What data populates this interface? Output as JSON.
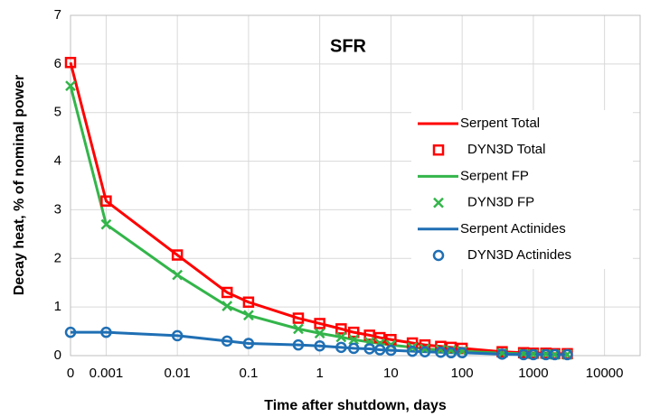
{
  "chart_data": {
    "type": "line",
    "annotation": "SFR",
    "xlabel": "Time after shutdown, days",
    "ylabel": "Decay heat, % of nominal power",
    "xscale": "log",
    "x": [
      0.000316,
      0.001,
      0.01,
      0.05,
      0.1,
      0.5,
      1,
      2,
      3,
      5,
      7,
      10,
      20,
      30,
      50,
      70,
      100,
      365,
      730,
      1000,
      1500,
      2000,
      3000
    ],
    "series": [
      {
        "name": "Serpent Total",
        "color": "#ff0000",
        "marker": "line",
        "values": [
          6.03,
          3.18,
          2.07,
          1.3,
          1.1,
          0.77,
          0.66,
          0.55,
          0.48,
          0.42,
          0.37,
          0.33,
          0.26,
          0.22,
          0.19,
          0.17,
          0.15,
          0.08,
          0.06,
          0.05,
          0.05,
          0.04,
          0.04
        ]
      },
      {
        "name": "DYN3D Total",
        "color": "#ff0000",
        "marker": "square",
        "values": [
          6.03,
          3.18,
          2.07,
          1.3,
          1.1,
          0.77,
          0.66,
          0.55,
          0.48,
          0.42,
          0.37,
          0.33,
          0.26,
          0.22,
          0.19,
          0.17,
          0.15,
          0.08,
          0.06,
          0.05,
          0.05,
          0.04,
          0.04
        ]
      },
      {
        "name": "Serpent FP",
        "color": "#33b54a",
        "marker": "line",
        "values": [
          5.55,
          2.7,
          1.66,
          1.02,
          0.83,
          0.55,
          0.46,
          0.38,
          0.33,
          0.28,
          0.25,
          0.22,
          0.17,
          0.14,
          0.12,
          0.11,
          0.09,
          0.05,
          0.04,
          0.03,
          0.03,
          0.02,
          0.02
        ]
      },
      {
        "name": "DYN3D FP",
        "color": "#33b54a",
        "marker": "x",
        "values": [
          5.55,
          2.7,
          1.66,
          1.02,
          0.83,
          0.55,
          0.46,
          0.38,
          0.33,
          0.28,
          0.25,
          0.22,
          0.17,
          0.14,
          0.12,
          0.11,
          0.09,
          0.05,
          0.04,
          0.03,
          0.03,
          0.02,
          0.02
        ]
      },
      {
        "name": "Serpent Actinides",
        "color": "#1f6fb4",
        "marker": "line",
        "values": [
          0.48,
          0.48,
          0.41,
          0.3,
          0.25,
          0.22,
          0.2,
          0.17,
          0.15,
          0.14,
          0.12,
          0.11,
          0.09,
          0.08,
          0.07,
          0.06,
          0.06,
          0.03,
          0.02,
          0.02,
          0.02,
          0.02,
          0.02
        ]
      },
      {
        "name": "DYN3D Actinides",
        "color": "#1f6fb4",
        "marker": "circle",
        "values": [
          0.48,
          0.48,
          0.41,
          0.3,
          0.25,
          0.22,
          0.2,
          0.17,
          0.15,
          0.14,
          0.12,
          0.11,
          0.09,
          0.08,
          0.07,
          0.06,
          0.06,
          0.03,
          0.02,
          0.02,
          0.02,
          0.02,
          0.02
        ]
      }
    ],
    "xlim": [
      0.000316,
      31600
    ],
    "xticks": [
      {
        "value": 0.000316,
        "label": "0"
      },
      0.001,
      0.01,
      0.1,
      1,
      10,
      100,
      1000,
      10000
    ],
    "ylim": [
      0,
      7
    ],
    "yticks": [
      0,
      1,
      2,
      3,
      4,
      5,
      6,
      7
    ],
    "grid": true,
    "legend": "right"
  }
}
